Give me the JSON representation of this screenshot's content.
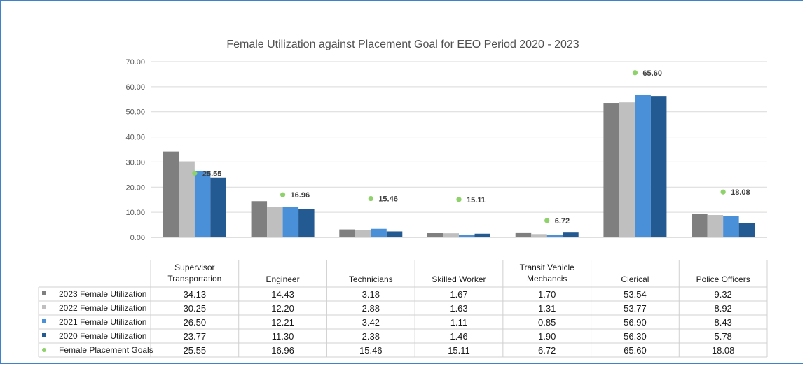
{
  "chart_data": {
    "type": "bar",
    "title": "Female Utilization against Placement Goal for EEO Period 2020 - 2023",
    "xlabel": "",
    "ylabel": "",
    "ylim": [
      0,
      70
    ],
    "yticks": [
      "0.00",
      "10.00",
      "20.00",
      "30.00",
      "40.00",
      "50.00",
      "60.00",
      "70.00"
    ],
    "grid": true,
    "categories": [
      [
        "Supervisor",
        "Transportation"
      ],
      [
        "Engineer"
      ],
      [
        "Technicians"
      ],
      [
        "Skilled Worker"
      ],
      [
        "Transit Vehicle",
        "Mechancis"
      ],
      [
        "Clerical"
      ],
      [
        "Police Officers"
      ]
    ],
    "series": [
      {
        "name": "2023 Female Utilization",
        "kind": "bar",
        "color": "#7f7f7f",
        "values": [
          34.13,
          14.43,
          3.18,
          1.67,
          1.7,
          53.54,
          9.32
        ],
        "labels": [
          "34.13",
          "14.43",
          "3.18",
          "1.67",
          "1.70",
          "53.54",
          "9.32"
        ]
      },
      {
        "name": "2022 Female Utilization",
        "kind": "bar",
        "color": "#bfbfbf",
        "values": [
          30.25,
          12.2,
          2.88,
          1.63,
          1.31,
          53.77,
          8.92
        ],
        "labels": [
          "30.25",
          "12.20",
          "2.88",
          "1.63",
          "1.31",
          "53.77",
          "8.92"
        ]
      },
      {
        "name": "2021 Female Utilization",
        "kind": "bar",
        "color": "#4a90d9",
        "values": [
          26.5,
          12.21,
          3.42,
          1.11,
          0.85,
          56.9,
          8.43
        ],
        "labels": [
          "26.50",
          "12.21",
          "3.42",
          "1.11",
          "0.85",
          "56.90",
          "8.43"
        ]
      },
      {
        "name": "2020 Female Utilization",
        "kind": "bar",
        "color": "#235a91",
        "values": [
          23.77,
          11.3,
          2.38,
          1.46,
          1.9,
          56.3,
          5.78
        ],
        "labels": [
          "23.77",
          "11.30",
          "2.38",
          "1.46",
          "1.90",
          "56.30",
          "5.78"
        ]
      },
      {
        "name": "Female Placement Goals",
        "kind": "point",
        "color": "#8fd16a",
        "values": [
          25.55,
          16.96,
          15.46,
          15.11,
          6.72,
          65.6,
          18.08
        ],
        "labels": [
          "25.55",
          "16.96",
          "15.46",
          "15.11",
          "6.72",
          "65.60",
          "18.08"
        ]
      }
    ]
  }
}
